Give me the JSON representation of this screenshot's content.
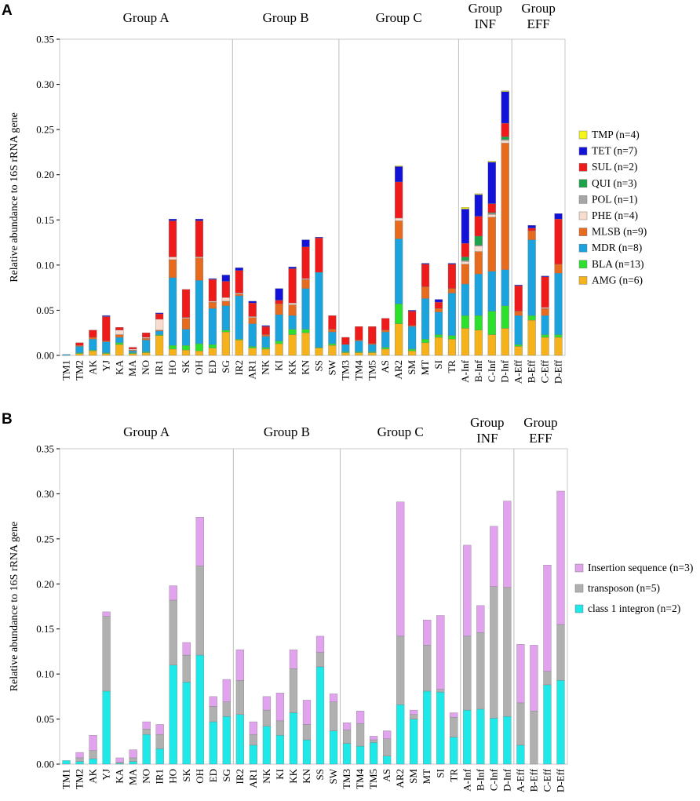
{
  "chart_data": [
    {
      "panel": "A",
      "type": "bar",
      "stacked": true,
      "ylabel": "Relative abundance to 16S rRNA gene",
      "ylim": [
        0,
        0.35
      ],
      "yticks": [
        "0.00",
        "0.05",
        "0.10",
        "0.15",
        "0.20",
        "0.25",
        "0.30",
        "0.35"
      ],
      "categories": [
        "TM1",
        "TM2",
        "AK",
        "YJ",
        "KA",
        "MA",
        "NO",
        "IR1",
        "HO",
        "SK",
        "OH",
        "ED",
        "SG",
        "IR2",
        "AR1",
        "NK",
        "KI",
        "KK",
        "KN",
        "SS",
        "SW",
        "TM3",
        "TM4",
        "TM5",
        "AS",
        "AR2",
        "SM",
        "MT",
        "SI",
        "TR",
        "A-Inf",
        "B-Inf",
        "C-Inf",
        "D-Inf",
        "A-Eff",
        "B-Eff",
        "C-Eff",
        "D-Eff"
      ],
      "groups": [
        {
          "label": "Group A",
          "lines": [
            "Group A"
          ],
          "start": 0,
          "end": 12
        },
        {
          "label": "Group B",
          "lines": [
            "Group B"
          ],
          "start": 13,
          "end": 20
        },
        {
          "label": "Group C",
          "lines": [
            "Group C"
          ],
          "start": 21,
          "end": 29
        },
        {
          "label": "Group INF",
          "lines": [
            "Group",
            "INF"
          ],
          "start": 30,
          "end": 33
        },
        {
          "label": "Group EFF",
          "lines": [
            "Group",
            "EFF"
          ],
          "start": 34,
          "end": 37
        }
      ],
      "series": [
        {
          "name": "AMG (n=6)",
          "color": "#f5b21b",
          "values": [
            0.0,
            0.002,
            0.005,
            0.002,
            0.012,
            0.002,
            0.003,
            0.022,
            0.007,
            0.006,
            0.005,
            0.008,
            0.026,
            0.017,
            0.008,
            0.007,
            0.013,
            0.023,
            0.025,
            0.008,
            0.011,
            0.003,
            0.003,
            0.003,
            0.007,
            0.035,
            0.005,
            0.014,
            0.02,
            0.018,
            0.03,
            0.028,
            0.023,
            0.03,
            0.01,
            0.039,
            0.02,
            0.02
          ]
        },
        {
          "name": "BLA (n=13)",
          "color": "#2ee02e",
          "values": [
            0.0,
            0.001,
            0.001,
            0.001,
            0.002,
            0.001,
            0.001,
            0.001,
            0.004,
            0.005,
            0.008,
            0.004,
            0.002,
            0.001,
            0.002,
            0.002,
            0.003,
            0.006,
            0.004,
            0.001,
            0.002,
            0.001,
            0.001,
            0.001,
            0.002,
            0.022,
            0.002,
            0.004,
            0.003,
            0.004,
            0.014,
            0.016,
            0.026,
            0.025,
            0.002,
            0.005,
            0.003,
            0.003
          ]
        },
        {
          "name": "MDR (n=8)",
          "color": "#1aa3dd",
          "values": [
            0.001,
            0.007,
            0.012,
            0.012,
            0.006,
            0.002,
            0.013,
            0.004,
            0.075,
            0.018,
            0.07,
            0.04,
            0.027,
            0.048,
            0.025,
            0.012,
            0.029,
            0.015,
            0.045,
            0.083,
            0.013,
            0.008,
            0.012,
            0.008,
            0.017,
            0.072,
            0.025,
            0.045,
            0.025,
            0.047,
            0.035,
            0.046,
            0.044,
            0.04,
            0.032,
            0.084,
            0.021,
            0.068
          ]
        },
        {
          "name": "MLSB (n=9)",
          "color": "#e66b1f",
          "values": [
            0.0,
            0.001,
            0.002,
            0.001,
            0.003,
            0.001,
            0.002,
            0.001,
            0.02,
            0.012,
            0.025,
            0.007,
            0.005,
            0.002,
            0.007,
            0.002,
            0.012,
            0.012,
            0.01,
            0.0,
            0.003,
            0.0,
            0.001,
            0.001,
            0.002,
            0.02,
            0.001,
            0.013,
            0.004,
            0.005,
            0.022,
            0.025,
            0.06,
            0.14,
            0.005,
            0.01,
            0.008,
            0.01
          ]
        },
        {
          "name": "PHE (n=4)",
          "color": "#f8dccd",
          "values": [
            0.0,
            0.0,
            0.0,
            0.0,
            0.005,
            0.001,
            0.001,
            0.012,
            0.003,
            0.001,
            0.001,
            0.001,
            0.004,
            0.001,
            0.001,
            0.0,
            0.0,
            0.002,
            0.001,
            0.0,
            0.0,
            0.0,
            0.0,
            0.0,
            0.0,
            0.003,
            0.0,
            0.0,
            0.0,
            0.0,
            0.003,
            0.006,
            0.003,
            0.003,
            0.0,
            0.0,
            0.001,
            0.0
          ]
        },
        {
          "name": "POL (n=1)",
          "color": "#a6a6a6",
          "values": [
            0.0,
            0.0,
            0.0,
            0.0,
            0.0,
            0.0,
            0.0,
            0.0,
            0.0,
            0.0,
            0.0,
            0.0,
            0.0,
            0.0,
            0.0,
            0.0,
            0.0,
            0.0,
            0.0,
            0.0,
            0.0,
            0.0,
            0.0,
            0.0,
            0.0,
            0.0,
            0.0,
            0.0,
            0.0,
            0.0,
            0.001,
            0.001,
            0.001,
            0.001,
            0.0,
            0.0,
            0.0,
            0.0
          ]
        },
        {
          "name": "QUI (n=3)",
          "color": "#1ea34a",
          "values": [
            0.0,
            0.0,
            0.0,
            0.0,
            0.0,
            0.0,
            0.0,
            0.0,
            0.0,
            0.0,
            0.0,
            0.0,
            0.0,
            0.0,
            0.0,
            0.0,
            0.0,
            0.0,
            0.0,
            0.0,
            0.0,
            0.0,
            0.0,
            0.0,
            0.0,
            0.0,
            0.0,
            0.0,
            0.0,
            0.0,
            0.004,
            0.01,
            0.001,
            0.003,
            0.0,
            0.0,
            0.0,
            0.0
          ]
        },
        {
          "name": "SUL (n=2)",
          "color": "#ef1a1a",
          "values": [
            0.0,
            0.003,
            0.008,
            0.027,
            0.003,
            0.002,
            0.005,
            0.006,
            0.04,
            0.031,
            0.04,
            0.024,
            0.018,
            0.025,
            0.015,
            0.009,
            0.004,
            0.038,
            0.035,
            0.038,
            0.015,
            0.008,
            0.015,
            0.019,
            0.013,
            0.04,
            0.016,
            0.025,
            0.007,
            0.027,
            0.015,
            0.022,
            0.01,
            0.015,
            0.028,
            0.003,
            0.034,
            0.05
          ]
        },
        {
          "name": "TET (n=7)",
          "color": "#1212d8",
          "values": [
            0.0,
            0.0,
            0.0,
            0.001,
            0.0,
            0.0,
            0.0,
            0.001,
            0.002,
            0.0,
            0.002,
            0.001,
            0.007,
            0.003,
            0.002,
            0.001,
            0.013,
            0.002,
            0.008,
            0.001,
            0.0,
            0.0,
            0.0,
            0.0,
            0.0,
            0.017,
            0.001,
            0.001,
            0.003,
            0.001,
            0.038,
            0.024,
            0.046,
            0.035,
            0.001,
            0.003,
            0.001,
            0.006
          ]
        },
        {
          "name": "TMP (n=4)",
          "color": "#f5f51a",
          "values": [
            0.0,
            0.0,
            0.0,
            0.0,
            0.0,
            0.0,
            0.0,
            0.0,
            0.0,
            0.0,
            0.0,
            0.0,
            0.0,
            0.0,
            0.0,
            0.0,
            0.0,
            0.0,
            0.0,
            0.0,
            0.0,
            0.0,
            0.0,
            0.0,
            0.0,
            0.001,
            0.0,
            0.0,
            0.0,
            0.0,
            0.002,
            0.001,
            0.001,
            0.001,
            0.0,
            0.0,
            0.0,
            0.0
          ]
        }
      ]
    },
    {
      "panel": "B",
      "type": "bar",
      "stacked": true,
      "ylabel": "Relative abundance to 16S rRNA gene",
      "ylim": [
        0,
        0.35
      ],
      "yticks": [
        "0.00",
        "0.05",
        "0.10",
        "0.15",
        "0.20",
        "0.25",
        "0.30",
        "0.35"
      ],
      "categories": [
        "TM1",
        "TM2",
        "AK",
        "YJ",
        "KA",
        "MA",
        "NO",
        "IR1",
        "HO",
        "SK",
        "OH",
        "ED",
        "SG",
        "IR2",
        "AR1",
        "NK",
        "KI",
        "KK",
        "KN",
        "SS",
        "SW",
        "TM3",
        "TM4",
        "TM5",
        "AS",
        "AR2",
        "SM",
        "MT",
        "SI",
        "TR",
        "A-Inf",
        "B-Inf",
        "C-Inf",
        "D-Inf",
        "A-Eff",
        "B-Eff",
        "C-Eff",
        "D-Eff"
      ],
      "groups": [
        {
          "label": "Group A",
          "lines": [
            "Group A"
          ],
          "start": 0,
          "end": 12
        },
        {
          "label": "Group B",
          "lines": [
            "Group B"
          ],
          "start": 13,
          "end": 20
        },
        {
          "label": "Group C",
          "lines": [
            "Group C"
          ],
          "start": 21,
          "end": 29
        },
        {
          "label": "Group INF",
          "lines": [
            "Group",
            "INF"
          ],
          "start": 30,
          "end": 33
        },
        {
          "label": "Group EFF",
          "lines": [
            "Group",
            "EFF"
          ],
          "start": 34,
          "end": 37
        }
      ],
      "series": [
        {
          "name": "class 1 integron (n=2)",
          "color": "#1ee8e8",
          "values": [
            0.004,
            0.003,
            0.006,
            0.081,
            0.001,
            0.003,
            0.033,
            0.017,
            0.11,
            0.091,
            0.121,
            0.047,
            0.053,
            0.055,
            0.021,
            0.042,
            0.032,
            0.057,
            0.027,
            0.108,
            0.037,
            0.023,
            0.02,
            0.024,
            0.009,
            0.066,
            0.05,
            0.081,
            0.08,
            0.03,
            0.06,
            0.061,
            0.051,
            0.053,
            0.021,
            0.0,
            0.088,
            0.093
          ]
        },
        {
          "name": "transposon (n=5)",
          "color": "#b0b0b0",
          "values": [
            0.0,
            0.004,
            0.009,
            0.083,
            0.001,
            0.004,
            0.006,
            0.016,
            0.072,
            0.03,
            0.099,
            0.017,
            0.016,
            0.038,
            0.012,
            0.018,
            0.016,
            0.049,
            0.017,
            0.016,
            0.032,
            0.015,
            0.025,
            0.003,
            0.019,
            0.076,
            0.005,
            0.051,
            0.003,
            0.022,
            0.082,
            0.085,
            0.146,
            0.143,
            0.047,
            0.059,
            0.015,
            0.062
          ]
        },
        {
          "name": "Insertion sequence (n=3)",
          "color": "#e1a2ee",
          "values": [
            0.0,
            0.006,
            0.017,
            0.005,
            0.005,
            0.009,
            0.008,
            0.011,
            0.016,
            0.014,
            0.054,
            0.011,
            0.025,
            0.034,
            0.014,
            0.015,
            0.031,
            0.021,
            0.027,
            0.018,
            0.009,
            0.008,
            0.014,
            0.004,
            0.009,
            0.149,
            0.005,
            0.028,
            0.082,
            0.005,
            0.101,
            0.03,
            0.067,
            0.096,
            0.065,
            0.073,
            0.118,
            0.148
          ]
        }
      ]
    }
  ],
  "panel_labels": [
    "A",
    "B"
  ]
}
